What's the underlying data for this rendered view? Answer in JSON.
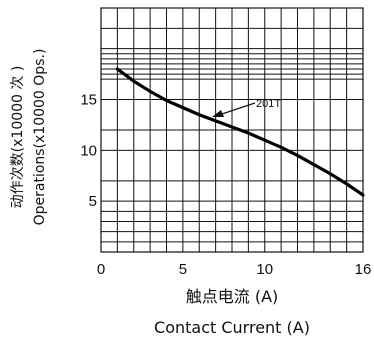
{
  "chart_data": {
    "type": "line",
    "title": "",
    "xlabel_lines": [
      "触点电流 (A)",
      "Contact Current (A)"
    ],
    "ylabel_lines": [
      "动作次数(x10000 次 )",
      "Operations(x10000 Ops.)"
    ],
    "xlim": [
      0,
      16
    ],
    "ylim": [
      0,
      24
    ],
    "xticks": [
      0,
      5,
      10,
      16
    ],
    "xtick_labels": [
      "0",
      "5",
      "10",
      "16"
    ],
    "yticks": [
      5,
      10,
      15
    ],
    "ytick_labels": [
      "5",
      "10",
      "15"
    ],
    "grid": true,
    "series": [
      {
        "name": "201T",
        "x": [
          1,
          2,
          3,
          4,
          5,
          6,
          7,
          8,
          9,
          10,
          11,
          12,
          13,
          14,
          15,
          16
        ],
        "y": [
          18.0,
          16.8,
          15.8,
          14.9,
          14.2,
          13.5,
          12.9,
          12.3,
          11.7,
          11.0,
          10.3,
          9.5,
          8.6,
          7.7,
          6.7,
          5.6
        ]
      }
    ]
  }
}
